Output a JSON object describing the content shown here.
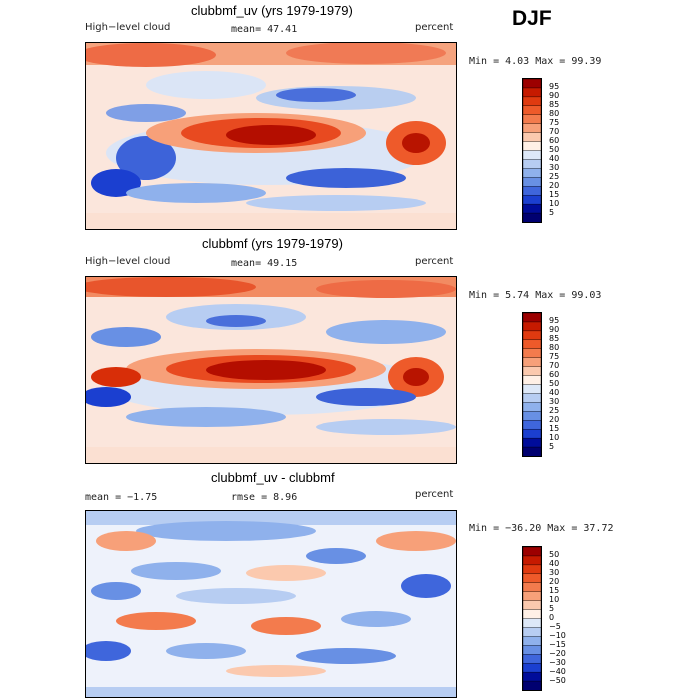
{
  "season": "DJF",
  "panels": [
    {
      "title": "clubbmf_uv (yrs 1979-1979)",
      "left_label": "High−level cloud",
      "center_label": "mean=  47.41",
      "right_label": "percent",
      "minmax": "Min =   4.03 Max =  99.39",
      "colorbar": {
        "levels": [
          "95",
          "90",
          "85",
          "80",
          "75",
          "70",
          "60",
          "50",
          "40",
          "30",
          "25",
          "20",
          "15",
          "10",
          "5"
        ],
        "colors": [
          "#9c0000",
          "#c61a00",
          "#e03a10",
          "#ee5a2a",
          "#f37b4d",
          "#f7a079",
          "#fbc9ae",
          "#fff0e6",
          "#dde8f8",
          "#b7cdf2",
          "#8fb1ec",
          "#6890e4",
          "#3f66dc",
          "#1b3fd0",
          "#000c9a",
          "#000070"
        ]
      }
    },
    {
      "title": "clubbmf (yrs 1979-1979)",
      "left_label": "High−level cloud",
      "center_label": "mean=  49.15",
      "right_label": "percent",
      "minmax": "Min =   5.74 Max =  99.03",
      "colorbar": {
        "levels": [
          "95",
          "90",
          "85",
          "80",
          "75",
          "70",
          "60",
          "50",
          "40",
          "30",
          "25",
          "20",
          "15",
          "10",
          "5"
        ],
        "colors": [
          "#9c0000",
          "#c61a00",
          "#e03a10",
          "#ee5a2a",
          "#f37b4d",
          "#f7a079",
          "#fbc9ae",
          "#fff0e6",
          "#dde8f8",
          "#b7cdf2",
          "#8fb1ec",
          "#6890e4",
          "#3f66dc",
          "#1b3fd0",
          "#000c9a",
          "#000070"
        ]
      }
    },
    {
      "title": "clubbmf_uv - clubbmf",
      "left_label": "mean =  −1.75",
      "center_label": "rmse =   8.96",
      "right_label": "percent",
      "minmax": "Min = −36.20 Max =  37.72",
      "colorbar": {
        "levels": [
          "50",
          "40",
          "30",
          "20",
          "15",
          "10",
          "5",
          "0",
          "−5",
          "−10",
          "−15",
          "−20",
          "−30",
          "−40",
          "−50"
        ],
        "colors": [
          "#9c0000",
          "#c61a00",
          "#e03a10",
          "#ee5a2a",
          "#f37b4d",
          "#f7a079",
          "#fbc9ae",
          "#fff0e6",
          "#dde8f8",
          "#b7cdf2",
          "#8fb1ec",
          "#6890e4",
          "#3f66dc",
          "#1b3fd0",
          "#000c9a",
          "#000070"
        ]
      }
    }
  ],
  "chart_data": [
    {
      "type": "heatmap",
      "title": "clubbmf_uv (yrs 1979-1979)",
      "variable": "High-level cloud",
      "units": "percent",
      "mean": 47.41,
      "min": 4.03,
      "max": 99.39,
      "contour_levels": [
        5,
        10,
        15,
        20,
        25,
        30,
        40,
        50,
        60,
        70,
        75,
        80,
        85,
        90,
        95
      ]
    },
    {
      "type": "heatmap",
      "title": "clubbmf (yrs 1979-1979)",
      "variable": "High-level cloud",
      "units": "percent",
      "mean": 49.15,
      "min": 5.74,
      "max": 99.03,
      "contour_levels": [
        5,
        10,
        15,
        20,
        25,
        30,
        40,
        50,
        60,
        70,
        75,
        80,
        85,
        90,
        95
      ]
    },
    {
      "type": "heatmap",
      "title": "clubbmf_uv - clubbmf",
      "units": "percent",
      "mean": -1.75,
      "rmse": 8.96,
      "min": -36.2,
      "max": 37.72,
      "contour_levels": [
        -50,
        -40,
        -30,
        -20,
        -15,
        -10,
        -5,
        0,
        5,
        10,
        15,
        20,
        30,
        40,
        50
      ]
    }
  ]
}
